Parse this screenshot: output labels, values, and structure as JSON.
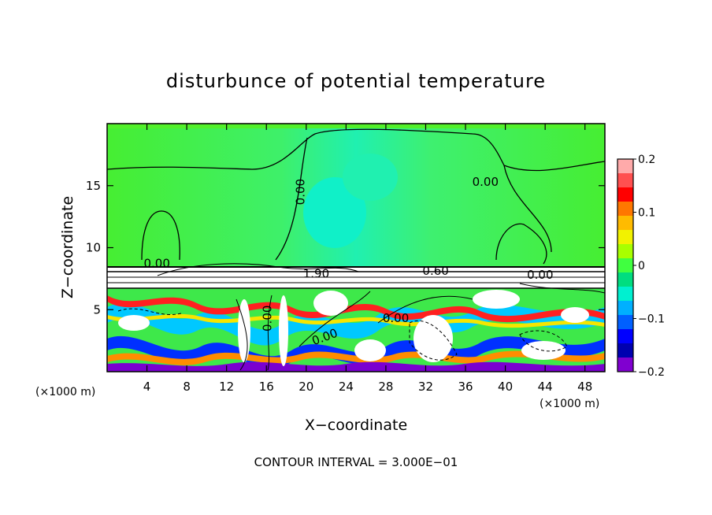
{
  "chart_data": {
    "type": "heatmap",
    "title": "disturbunce of potential temperature",
    "xlabel": "X−coordinate",
    "ylabel": "Z−coordinate",
    "x_unit": "(×1000 m)",
    "x_unit_right": "(×1000 m)",
    "xlim": [
      0,
      50
    ],
    "ylim": [
      0,
      20
    ],
    "x_ticks": [
      4,
      8,
      12,
      16,
      20,
      24,
      28,
      32,
      36,
      40,
      44,
      48
    ],
    "y_ticks": [
      5,
      10,
      15
    ],
    "colorbar": {
      "range": [
        -0.2,
        0.2
      ],
      "tick_values": [
        0.2,
        0.1,
        0,
        -0.1,
        -0.2
      ],
      "tick_labels": [
        "0.2",
        "0.1",
        "0",
        "−0.1",
        "−0.2"
      ],
      "colors": [
        "#ffaaaa",
        "#ff5050",
        "#ff0000",
        "#ff7700",
        "#ffbb00",
        "#f2f200",
        "#a8ff00",
        "#40ff40",
        "#00dd80",
        "#00f0d0",
        "#00b0ff",
        "#0060ff",
        "#0000ff",
        "#0000b0",
        "#8000d0"
      ]
    },
    "upper_layer_value": 0.0,
    "contour_labels": [
      {
        "text": "0.00",
        "x": 19.8,
        "y": 14.5,
        "rotate": -90
      },
      {
        "text": "0.00",
        "x": 38.0,
        "y": 15.0,
        "rotate": 0
      },
      {
        "text": "0.00",
        "x": 5.0,
        "y": 8.4,
        "rotate": 0
      },
      {
        "text": "0.60",
        "x": 33.0,
        "y": 7.8,
        "rotate": 0
      },
      {
        "text": "0.00",
        "x": 43.5,
        "y": 7.5,
        "rotate": 0
      },
      {
        "text": "1.90",
        "x": 21.0,
        "y": 7.6,
        "rotate": 0
      },
      {
        "text": "0.00",
        "x": 16.5,
        "y": 4.3,
        "rotate": -90
      },
      {
        "text": "0.00",
        "x": 22.0,
        "y": 2.5,
        "rotate": -20
      },
      {
        "text": "0.00",
        "x": 29.0,
        "y": 4.0,
        "rotate": 0
      }
    ],
    "annotation": "CONTOUR INTERVAL = 3.000E−01"
  }
}
